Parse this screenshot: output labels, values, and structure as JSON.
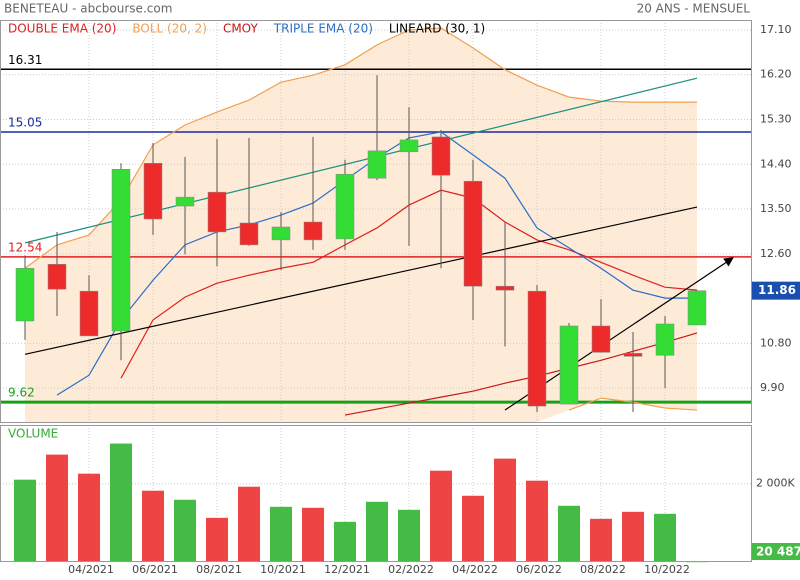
{
  "header": {
    "title": "BENETEAU - abcbourse.com",
    "period": "20 ANS - MENSUEL"
  },
  "chart_data": [
    {
      "type": "candlestick",
      "categories": [
        null,
        null,
        "04/2021",
        null,
        "06/2021",
        null,
        "08/2021",
        null,
        "10/2021",
        null,
        "12/2021",
        null,
        "02/2022",
        null,
        "04/2022",
        null,
        "06/2022",
        null,
        "08/2022",
        null,
        "10/2022",
        null
      ],
      "open": [
        11.25,
        12.39,
        11.85,
        11.05,
        14.42,
        13.56,
        13.84,
        13.22,
        12.88,
        13.24,
        12.9,
        14.12,
        14.65,
        14.95,
        14.06,
        11.95,
        11.85,
        9.58,
        11.15,
        10.6,
        10.56,
        11.17
      ],
      "high": [
        12.57,
        13.04,
        12.17,
        14.42,
        14.83,
        14.55,
        14.91,
        14.93,
        13.44,
        14.95,
        14.49,
        16.19,
        15.55,
        15.09,
        14.49,
        13.24,
        11.97,
        11.21,
        11.69,
        11.03,
        11.35,
        11.87
      ],
      "low": [
        10.87,
        11.35,
        10.95,
        10.46,
        12.98,
        12.59,
        12.35,
        12.76,
        12.27,
        12.68,
        12.68,
        14.08,
        12.76,
        12.31,
        11.27,
        10.74,
        9.42,
        9.58,
        10.62,
        9.42,
        9.9,
        11.17
      ],
      "close": [
        12.31,
        11.89,
        10.95,
        14.3,
        13.3,
        13.74,
        13.04,
        12.78,
        13.14,
        12.88,
        14.2,
        14.67,
        14.89,
        14.18,
        11.95,
        11.87,
        9.54,
        11.15,
        10.62,
        10.54,
        11.19,
        11.86
      ],
      "up_color": "#33dd33",
      "down_color": "#ee2b2b",
      "ylim": [
        9.22,
        17.3
      ],
      "yticks": [
        {
          "value": 17.1,
          "label": "17.10"
        },
        {
          "value": 16.2,
          "label": "16.20"
        },
        {
          "value": 15.3,
          "label": "15.30"
        },
        {
          "value": 14.4,
          "label": "14.40"
        },
        {
          "value": 13.5,
          "label": "13.50"
        },
        {
          "value": 12.6,
          "label": "12.60"
        },
        {
          "value": 10.8,
          "label": "10.80"
        },
        {
          "value": 9.9,
          "label": "9.90"
        }
      ],
      "grid": true,
      "overlays": [
        {
          "name": "DOUBLE EMA (20)",
          "color": "#e02020",
          "values": [
            null,
            null,
            null,
            10.1,
            11.27,
            11.73,
            12.01,
            12.17,
            12.31,
            12.43,
            12.78,
            13.12,
            13.58,
            13.88,
            13.72,
            13.24,
            12.88,
            12.68,
            12.43,
            12.17,
            11.93,
            11.87
          ]
        },
        {
          "name": "BOLL (20, 2)",
          "color": "#f0a050",
          "fill": "#fdebd8",
          "upper": [
            12.31,
            12.78,
            12.98,
            13.68,
            14.79,
            15.19,
            15.45,
            15.69,
            16.05,
            16.19,
            16.4,
            16.8,
            17.1,
            17.14,
            16.74,
            16.3,
            15.99,
            15.75,
            15.67,
            15.65,
            15.65,
            15.65
          ],
          "lower": [
            null,
            null,
            null,
            null,
            null,
            null,
            null,
            null,
            null,
            null,
            null,
            null,
            null,
            null,
            null,
            null,
            null,
            9.46,
            9.7,
            9.62,
            9.5,
            9.46
          ]
        },
        {
          "name": "CMOY",
          "color": "#c81818",
          "values": [
            null,
            null,
            null,
            null,
            null,
            null,
            null,
            null,
            null,
            null,
            9.36,
            9.48,
            9.6,
            9.72,
            9.84,
            10.0,
            10.14,
            10.3,
            10.46,
            10.64,
            10.82,
            11.01
          ]
        },
        {
          "name": "TRIPLE EMA (20)",
          "color": "#2a6fc4",
          "values": [
            null,
            9.76,
            10.16,
            11.27,
            12.07,
            12.78,
            13.04,
            13.18,
            13.38,
            13.62,
            14.08,
            14.53,
            14.93,
            15.05,
            14.59,
            14.12,
            13.12,
            12.72,
            12.31,
            11.87,
            11.71,
            11.71
          ]
        },
        {
          "name": "LINEARD (30, 1)",
          "color": "#000000",
          "x": [
            0,
            21
          ],
          "values": [
            10.58,
            13.54
          ]
        }
      ],
      "trend_lines": [
        {
          "color": "#18907e",
          "x": [
            0,
            21
          ],
          "values": [
            12.82,
            16.13
          ]
        },
        {
          "color": "#000000",
          "x": [
            15,
            22.1
          ],
          "values": [
            9.46,
            12.51
          ],
          "arrow": true
        }
      ],
      "levels": [
        {
          "value": 16.31,
          "color": "#000000"
        },
        {
          "value": 15.05,
          "color": "#1a2aa0"
        },
        {
          "value": 12.54,
          "color": "#e02020"
        },
        {
          "value": 9.62,
          "color": "#18a018"
        }
      ],
      "last_value": 11.86,
      "last_color": "#1a4fb0"
    },
    {
      "type": "bar",
      "title": "VOLUME",
      "values": [
        2103000,
        2744000,
        2256000,
        3026000,
        1821000,
        1590000,
        1128000,
        1923000,
        1410000,
        1385000,
        1026000,
        1538000,
        1333000,
        2333000,
        1692000,
        2641000,
        2077000,
        1436000,
        1103000,
        1282000,
        1231000,
        20487
      ],
      "value_labels": [
        null,
        null,
        null,
        null,
        null,
        null,
        null,
        null,
        null,
        null,
        null,
        null,
        null,
        null,
        null,
        null,
        null,
        null,
        null,
        null,
        null,
        "20 487"
      ],
      "up_color": "#44bb44",
      "down_color": "#ee4444",
      "ylim": [
        0,
        3500000
      ],
      "yticks": [
        {
          "value": 2000000,
          "label": "2 000K"
        }
      ]
    }
  ]
}
